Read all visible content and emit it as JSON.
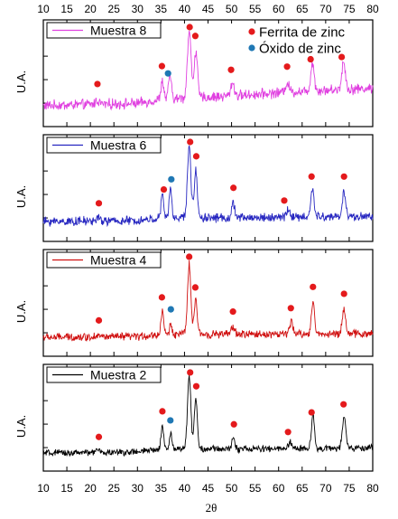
{
  "chart_data": {
    "type": "line",
    "xlabel": "2θ",
    "ylabel": "U.A.",
    "xlim": [
      10,
      80
    ],
    "x_ticks": [
      "10",
      "15",
      "20",
      "25",
      "30",
      "35",
      "40",
      "45",
      "50",
      "55",
      "60",
      "65",
      "70",
      "75",
      "80"
    ],
    "legend": {
      "placement": "top-right",
      "entries": [
        {
          "label": "Ferrita de zinc",
          "color": "#e41a1c"
        },
        {
          "label": "Óxido de zinc",
          "color": "#1f78b4"
        }
      ]
    },
    "panels": [
      {
        "name": "Muestra 8",
        "color": "#e040e0",
        "noise": 0.55,
        "baseline": [
          [
            10,
            0.0
          ],
          [
            30,
            0.15
          ],
          [
            34,
            0.35
          ],
          [
            40,
            0.5
          ],
          [
            45,
            0.55
          ],
          [
            55,
            0.75
          ],
          [
            65,
            0.95
          ],
          [
            80,
            1.15
          ]
        ],
        "peaks": [
          [
            21.5,
            0.25,
            0.6
          ],
          [
            35.3,
            1.2,
            0.45
          ],
          [
            36.9,
            1.7,
            0.4
          ],
          [
            41.0,
            4.4,
            0.55
          ],
          [
            42.4,
            3.1,
            0.5
          ],
          [
            50.2,
            0.9,
            0.5
          ],
          [
            61.8,
            0.6,
            0.6
          ],
          [
            67.2,
            1.9,
            0.5
          ],
          [
            73.8,
            1.8,
            0.55
          ]
        ],
        "ferrita_x": [
          21.5,
          35.2,
          41.1,
          42.3,
          49.9,
          61.8,
          66.8,
          73.4
        ],
        "oxido_x": [
          36.5
        ]
      },
      {
        "name": "Muestra 6",
        "color": "#2525c0",
        "noise": 0.5,
        "baseline": [
          [
            10,
            0.0
          ],
          [
            30,
            0.05
          ],
          [
            34,
            0.2
          ],
          [
            40,
            0.3
          ],
          [
            50,
            0.25
          ],
          [
            65,
            0.3
          ],
          [
            80,
            0.35
          ]
        ],
        "peaks": [
          [
            21.5,
            0.2,
            0.6
          ],
          [
            35.3,
            1.6,
            0.4
          ],
          [
            37.0,
            2.2,
            0.35
          ],
          [
            41.0,
            5.0,
            0.5
          ],
          [
            42.4,
            3.3,
            0.45
          ],
          [
            50.4,
            1.0,
            0.45
          ],
          [
            62.0,
            0.5,
            0.6
          ],
          [
            67.2,
            2.1,
            0.45
          ],
          [
            73.9,
            1.7,
            0.5
          ]
        ],
        "ferrita_x": [
          21.8,
          35.6,
          41.2,
          42.5,
          50.4,
          61.2,
          67.0,
          73.9
        ],
        "oxido_x": [
          37.2
        ]
      },
      {
        "name": "Muestra 4",
        "color": "#d01010",
        "noise": 0.55,
        "baseline": [
          [
            10,
            0.0
          ],
          [
            30,
            0.05
          ],
          [
            34,
            0.2
          ],
          [
            40,
            0.3
          ],
          [
            50,
            0.25
          ],
          [
            65,
            0.3
          ],
          [
            80,
            0.3
          ]
        ],
        "peaks": [
          [
            21.5,
            0.2,
            0.6
          ],
          [
            35.3,
            2.1,
            0.4
          ],
          [
            37.1,
            0.9,
            0.35
          ],
          [
            41.0,
            6.0,
            0.5
          ],
          [
            42.4,
            2.9,
            0.45
          ],
          [
            50.3,
            0.7,
            0.5
          ],
          [
            62.7,
            1.0,
            0.5
          ],
          [
            67.3,
            2.8,
            0.45
          ],
          [
            73.9,
            2.2,
            0.5
          ]
        ],
        "ferrita_x": [
          21.8,
          35.2,
          41.0,
          42.3,
          50.3,
          62.6,
          67.3,
          73.9
        ],
        "oxido_x": [
          37.1
        ]
      },
      {
        "name": "Muestra 2",
        "color": "#000000",
        "noise": 0.45,
        "baseline": [
          [
            10,
            0.0
          ],
          [
            30,
            0.1
          ],
          [
            34,
            0.3
          ],
          [
            40,
            0.4
          ],
          [
            50,
            0.35
          ],
          [
            65,
            0.4
          ],
          [
            80,
            0.45
          ]
        ],
        "peaks": [
          [
            21.5,
            0.2,
            0.6
          ],
          [
            35.3,
            2.1,
            0.4
          ],
          [
            37.1,
            1.4,
            0.35
          ],
          [
            41.0,
            6.3,
            0.5
          ],
          [
            42.4,
            4.4,
            0.45
          ],
          [
            50.4,
            1.0,
            0.45
          ],
          [
            62.5,
            0.5,
            0.6
          ],
          [
            67.3,
            3.0,
            0.45
          ],
          [
            73.9,
            2.7,
            0.5
          ]
        ],
        "ferrita_x": [
          21.8,
          35.3,
          41.2,
          42.5,
          50.5,
          62.0,
          67.0,
          73.8
        ],
        "oxido_x": [
          37.0
        ]
      }
    ]
  },
  "colors": {
    "ferrita": "#e41a1c",
    "oxido": "#1f78b4",
    "axis": "#000000"
  }
}
